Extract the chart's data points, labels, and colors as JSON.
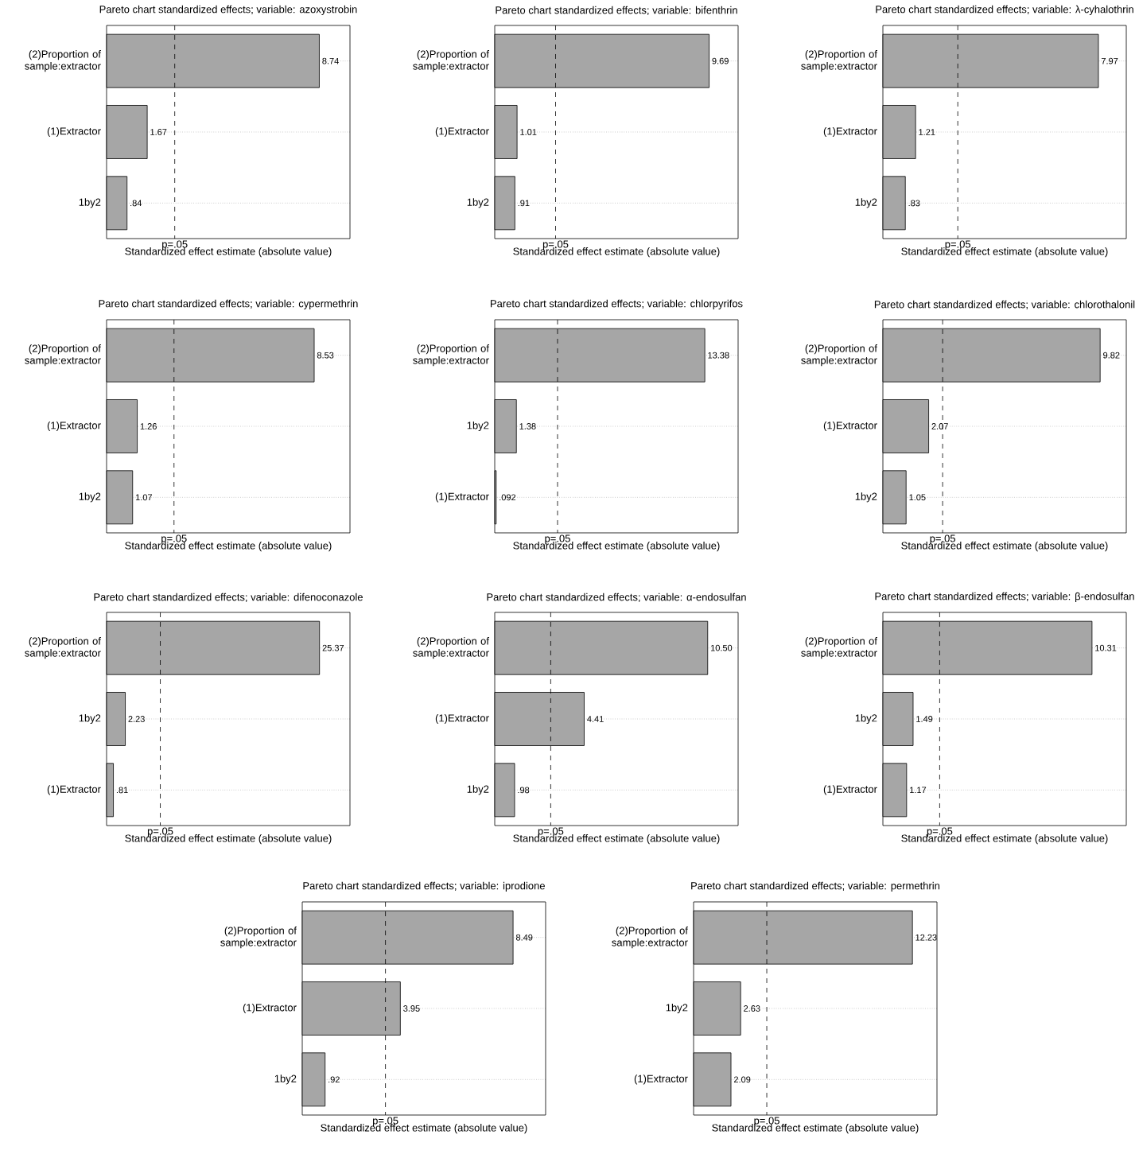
{
  "chart_data": [
    {
      "type": "bar",
      "orientation": "horizontal",
      "title": "Pareto chart standardized effects; variable: azoxystrobin",
      "xlabel": "Standardized effect estimate (absolute value)",
      "categories": [
        "(2)Proportion of sample:extractor",
        "(1)Extractor",
        "1by2"
      ],
      "values": [
        8.74,
        1.67,
        0.84
      ],
      "value_labels": [
        "8.74",
        "1.67",
        ".84"
      ],
      "color": "#a6a6a6",
      "xlim": [
        0,
        10
      ],
      "ref_lines": [
        {
          "axis": "x",
          "value": 2.8,
          "label": "p=.05",
          "line_style": "dashed"
        }
      ],
      "tick_labels": "y",
      "grid": "y"
    },
    {
      "type": "bar",
      "orientation": "horizontal",
      "title": "Pareto chart standardized effects; variable: bifenthrin",
      "xlabel": "Standardized effect estimate (absolute value)",
      "categories": [
        "(2)Proportion of sample:extractor",
        "(1)Extractor",
        "1by2"
      ],
      "values": [
        9.69,
        1.01,
        0.91
      ],
      "value_labels": [
        "9.69",
        "1.01",
        ".91"
      ],
      "color": "#a6a6a6",
      "xlim": [
        0,
        11
      ],
      "ref_lines": [
        {
          "axis": "x",
          "value": 2.75,
          "label": "p=.05",
          "line_style": "dashed"
        }
      ],
      "tick_labels": "y",
      "grid": "y"
    },
    {
      "type": "bar",
      "orientation": "horizontal",
      "title": "Pareto chart standardized effects; variable: λ-cyhalothrin",
      "xlabel": "Standardized effect estimate (absolute value)",
      "categories": [
        "(2)Proportion of sample:extractor",
        "(1)Extractor",
        "1by2"
      ],
      "values": [
        7.97,
        1.21,
        0.83
      ],
      "value_labels": [
        "7.97",
        "1.21",
        ".83"
      ],
      "color": "#a6a6a6",
      "xlim": [
        0,
        9
      ],
      "ref_lines": [
        {
          "axis": "x",
          "value": 2.77,
          "label": "p=.05",
          "line_style": "dashed"
        }
      ],
      "tick_labels": "y",
      "grid": "y"
    },
    {
      "type": "bar",
      "orientation": "horizontal",
      "title": "Pareto chart standardized effects; variable: cypermethrin",
      "xlabel": "Standardized effect estimate (absolute value)",
      "categories": [
        "(2)Proportion of sample:extractor",
        "(1)Extractor",
        "1by2"
      ],
      "values": [
        8.53,
        1.26,
        1.07
      ],
      "value_labels": [
        "8.53",
        "1.26",
        "1.07"
      ],
      "color": "#a6a6a6",
      "xlim": [
        0,
        10
      ],
      "ref_lines": [
        {
          "axis": "x",
          "value": 2.77,
          "label": "p=.05",
          "line_style": "dashed"
        }
      ],
      "tick_labels": "y",
      "grid": "y"
    },
    {
      "type": "bar",
      "orientation": "horizontal",
      "title": "Pareto chart standardized effects; variable: chlorpyrifos",
      "xlabel": "Standardized effect estimate (absolute value)",
      "categories": [
        "(2)Proportion of sample:extractor",
        "1by2",
        "(1)Extractor"
      ],
      "values": [
        13.38,
        1.38,
        0.092
      ],
      "value_labels": [
        "13.38",
        "1.38",
        ".092"
      ],
      "color": "#a6a6a6",
      "xlim": [
        0,
        15.5
      ],
      "ref_lines": [
        {
          "axis": "x",
          "value": 4.0,
          "label": "p=.05",
          "line_style": "dashed"
        }
      ],
      "tick_labels": "y",
      "grid": "y"
    },
    {
      "type": "bar",
      "orientation": "horizontal",
      "title": "Pareto chart standardized effects; variable: chlorothalonil",
      "xlabel": "Standardized effect estimate (absolute value)",
      "categories": [
        "(2)Proportion of sample:extractor",
        "(1)Extractor",
        "1by2"
      ],
      "values": [
        9.82,
        2.07,
        1.05
      ],
      "value_labels": [
        "9.82",
        "2.07",
        "1.05"
      ],
      "color": "#a6a6a6",
      "xlim": [
        0,
        11
      ],
      "ref_lines": [
        {
          "axis": "x",
          "value": 2.7,
          "label": "p=.05",
          "line_style": "dashed"
        }
      ],
      "tick_labels": "y",
      "grid": "y"
    },
    {
      "type": "bar",
      "orientation": "horizontal",
      "title": "Pareto chart standardized effects; variable: difenoconazole",
      "xlabel": "Standardized effect estimate (absolute value)",
      "categories": [
        "(2)Proportion of sample:extractor",
        "1by2",
        "(1)Extractor"
      ],
      "values": [
        25.37,
        2.23,
        0.81
      ],
      "value_labels": [
        "25.37",
        "2.23",
        ".81"
      ],
      "color": "#a6a6a6",
      "xlim": [
        0,
        29
      ],
      "ref_lines": [
        {
          "axis": "x",
          "value": 6.4,
          "label": "p=.05",
          "line_style": "dashed"
        }
      ],
      "tick_labels": "y",
      "grid": "y"
    },
    {
      "type": "bar",
      "orientation": "horizontal",
      "title": "Pareto chart standardized effects; variable: α-endosulfan",
      "xlabel": "Standardized effect estimate (absolute value)",
      "categories": [
        "(2)Proportion of sample:extractor",
        "(1)Extractor",
        "1by2"
      ],
      "values": [
        10.5,
        4.41,
        0.98
      ],
      "value_labels": [
        "10.50",
        "4.41",
        ".98"
      ],
      "color": "#a6a6a6",
      "xlim": [
        0,
        12
      ],
      "ref_lines": [
        {
          "axis": "x",
          "value": 2.76,
          "label": "p=.05",
          "line_style": "dashed"
        }
      ],
      "tick_labels": "y",
      "grid": "y"
    },
    {
      "type": "bar",
      "orientation": "horizontal",
      "title": "Pareto chart standardized effects; variable: β-endosulfan",
      "xlabel": "Standardized effect estimate (absolute value)",
      "categories": [
        "(2)Proportion of sample:extractor",
        "1by2",
        "(1)Extractor"
      ],
      "values": [
        10.31,
        1.49,
        1.17
      ],
      "value_labels": [
        "10.31",
        "1.49",
        "1.17"
      ],
      "color": "#a6a6a6",
      "xlim": [
        0,
        12
      ],
      "ref_lines": [
        {
          "axis": "x",
          "value": 2.8,
          "label": "p=.05",
          "line_style": "dashed"
        }
      ],
      "tick_labels": "y",
      "grid": "y"
    },
    {
      "type": "bar",
      "orientation": "horizontal",
      "title": "Pareto chart standardized effects; variable: iprodione",
      "xlabel": "Standardized effect estimate (absolute value)",
      "categories": [
        "(2)Proportion of sample:extractor",
        "(1)Extractor",
        "1by2"
      ],
      "values": [
        8.49,
        3.95,
        0.92
      ],
      "value_labels": [
        "8.49",
        "3.95",
        ".92"
      ],
      "color": "#a6a6a6",
      "xlim": [
        0,
        9.8
      ],
      "ref_lines": [
        {
          "axis": "x",
          "value": 3.35,
          "label": "p=.05",
          "line_style": "dashed"
        }
      ],
      "tick_labels": "y",
      "grid": "y"
    },
    {
      "type": "bar",
      "orientation": "horizontal",
      "title": "Pareto chart standardized effects; variable: permethrin",
      "xlabel": "Standardized effect estimate (absolute value)",
      "categories": [
        "(2)Proportion of sample:extractor",
        "1by2",
        "(1)Extractor"
      ],
      "values": [
        12.23,
        2.63,
        2.09
      ],
      "value_labels": [
        "12.23",
        "2.63",
        "2.09"
      ],
      "color": "#a6a6a6",
      "xlim": [
        0,
        13.6
      ],
      "ref_lines": [
        {
          "axis": "x",
          "value": 4.09,
          "label": "p=.05",
          "line_style": "dashed"
        }
      ],
      "tick_labels": "y",
      "grid": "y"
    }
  ]
}
